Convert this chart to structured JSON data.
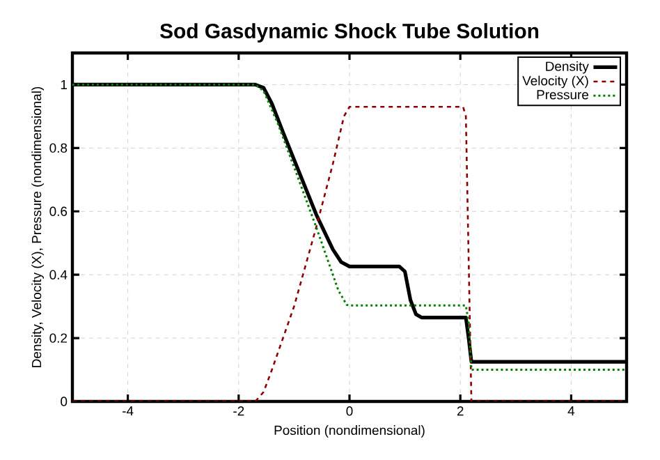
{
  "chart_data": {
    "type": "line",
    "title": "Sod Gasdynamic Shock Tube Solution",
    "xlabel": "Position (nondimensional)",
    "ylabel": "Density, Velocity (X), Pressure (nondimensional)",
    "xlim": [
      -5,
      5
    ],
    "xticks": [
      -4,
      -2,
      0,
      2,
      4
    ],
    "ylim": [
      0,
      1.1
    ],
    "yticks": [
      0,
      0.2,
      0.4,
      0.6,
      0.8,
      1
    ],
    "grid": true,
    "legend": "top right",
    "marker": "none",
    "series": [
      {
        "name": "Density",
        "color": "#000000",
        "line_style": "solid",
        "x": [
          -5,
          -1.7,
          -1.55,
          -1.4,
          -1.2,
          -0.9,
          -0.6,
          -0.3,
          -0.15,
          0,
          0.9,
          1.0,
          1.1,
          1.2,
          1.3,
          2.1,
          2.15,
          2.2,
          5
        ],
        "values": [
          1,
          1,
          0.99,
          0.94,
          0.85,
          0.72,
          0.59,
          0.48,
          0.44,
          0.426,
          0.426,
          0.41,
          0.32,
          0.275,
          0.265,
          0.265,
          0.2,
          0.125,
          0.125
        ]
      },
      {
        "name": "Velocity (X)",
        "color": "#8b0000",
        "line_style": "dashed",
        "x": [
          -5,
          -1.7,
          -1.55,
          -1.4,
          -1.0,
          -0.6,
          -0.3,
          -0.1,
          0,
          2.05,
          2.1,
          2.2,
          5
        ],
        "values": [
          0,
          0,
          0.03,
          0.1,
          0.3,
          0.55,
          0.75,
          0.9,
          0.93,
          0.93,
          0.9,
          0,
          0
        ]
      },
      {
        "name": "Pressure",
        "color": "#008000",
        "line_style": "dotted",
        "x": [
          -5,
          -1.7,
          -1.55,
          -1.3,
          -1.0,
          -0.6,
          -0.4,
          -0.2,
          -0.05,
          0,
          2.1,
          2.15,
          2.2,
          5
        ],
        "values": [
          1,
          1,
          0.98,
          0.88,
          0.74,
          0.55,
          0.45,
          0.35,
          0.305,
          0.303,
          0.303,
          0.25,
          0.1,
          0.1
        ]
      }
    ]
  }
}
